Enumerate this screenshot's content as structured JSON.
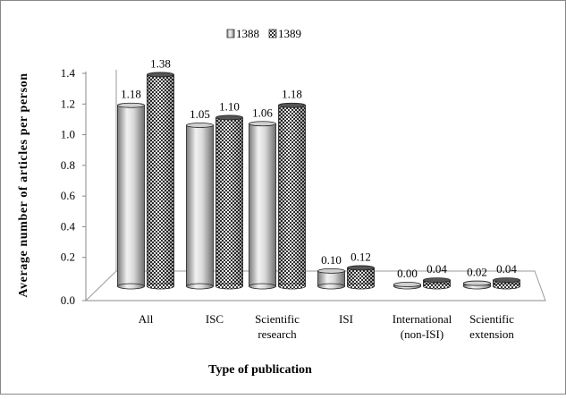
{
  "chart_data": {
    "type": "bar",
    "style": "3d-cylinder",
    "title": "",
    "xlabel": "Type of publication",
    "ylabel": "Average number of articles per person",
    "ylim": [
      0,
      1.4
    ],
    "yticks": [
      "0.0",
      "0.2",
      "0.4",
      "0.6",
      "0.8",
      "1.0",
      "1.2",
      "1.4"
    ],
    "categories": [
      [
        "All"
      ],
      [
        "ISC"
      ],
      [
        "Scientific",
        "research"
      ],
      [
        "ISI"
      ],
      [
        "International",
        "(non-ISI)"
      ],
      [
        "Scientific",
        "extension"
      ]
    ],
    "series": [
      {
        "name": "1388",
        "values": [
          1.18,
          1.05,
          1.06,
          0.1,
          0.0,
          0.02
        ],
        "labels": [
          "1.18",
          "1.05",
          "1.06",
          "0.10",
          "0.00",
          "0.02"
        ],
        "pattern": "plain-gray"
      },
      {
        "name": "1389",
        "values": [
          1.38,
          1.1,
          1.18,
          0.12,
          0.04,
          0.04
        ],
        "labels": [
          "1.38",
          "1.10",
          "1.18",
          "0.12",
          "0.04",
          "0.04"
        ],
        "pattern": "checkered"
      }
    ],
    "legend_position": "top-center",
    "grid": false
  }
}
